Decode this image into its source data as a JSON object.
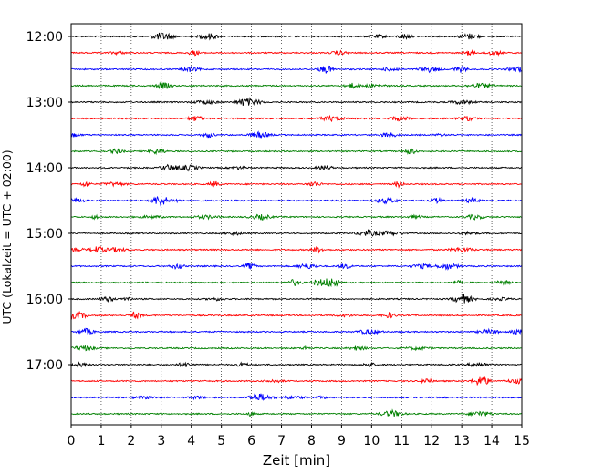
{
  "chart_data": {
    "type": "line",
    "title": "",
    "xlabel": "Zeit  [min]",
    "ylabel": "UTC (Lokalzeit = UTC + 02:00)",
    "xlim": [
      0,
      15
    ],
    "x_ticks": [
      "0",
      "1",
      "2",
      "3",
      "4",
      "5",
      "6",
      "7",
      "8",
      "9",
      "10",
      "11",
      "12",
      "13",
      "14",
      "15"
    ],
    "y_ticks": [
      "12:00",
      "13:00",
      "14:00",
      "15:00",
      "16:00",
      "17:00"
    ],
    "grid_x": true,
    "grid_style": "dotted",
    "trace_color_cycle": [
      "#000000",
      "#ff0000",
      "#0000ff",
      "#008000"
    ],
    "series": [
      {
        "start": "12:00",
        "color": "#000000"
      },
      {
        "start": "12:15",
        "color": "#ff0000"
      },
      {
        "start": "12:30",
        "color": "#0000ff"
      },
      {
        "start": "12:45",
        "color": "#008000"
      },
      {
        "start": "13:00",
        "color": "#000000"
      },
      {
        "start": "13:15",
        "color": "#ff0000"
      },
      {
        "start": "13:30",
        "color": "#0000ff"
      },
      {
        "start": "13:45",
        "color": "#008000"
      },
      {
        "start": "14:00",
        "color": "#000000"
      },
      {
        "start": "14:15",
        "color": "#ff0000"
      },
      {
        "start": "14:30",
        "color": "#0000ff"
      },
      {
        "start": "14:45",
        "color": "#008000"
      },
      {
        "start": "15:00",
        "color": "#000000"
      },
      {
        "start": "15:15",
        "color": "#ff0000"
      },
      {
        "start": "15:30",
        "color": "#0000ff"
      },
      {
        "start": "15:45",
        "color": "#008000"
      },
      {
        "start": "16:00",
        "color": "#000000"
      },
      {
        "start": "16:15",
        "color": "#ff0000"
      },
      {
        "start": "16:30",
        "color": "#0000ff"
      },
      {
        "start": "16:45",
        "color": "#008000"
      },
      {
        "start": "17:00",
        "color": "#000000"
      },
      {
        "start": "17:15",
        "color": "#ff0000"
      },
      {
        "start": "17:30",
        "color": "#0000ff"
      },
      {
        "start": "17:45",
        "color": "#008000"
      }
    ]
  }
}
